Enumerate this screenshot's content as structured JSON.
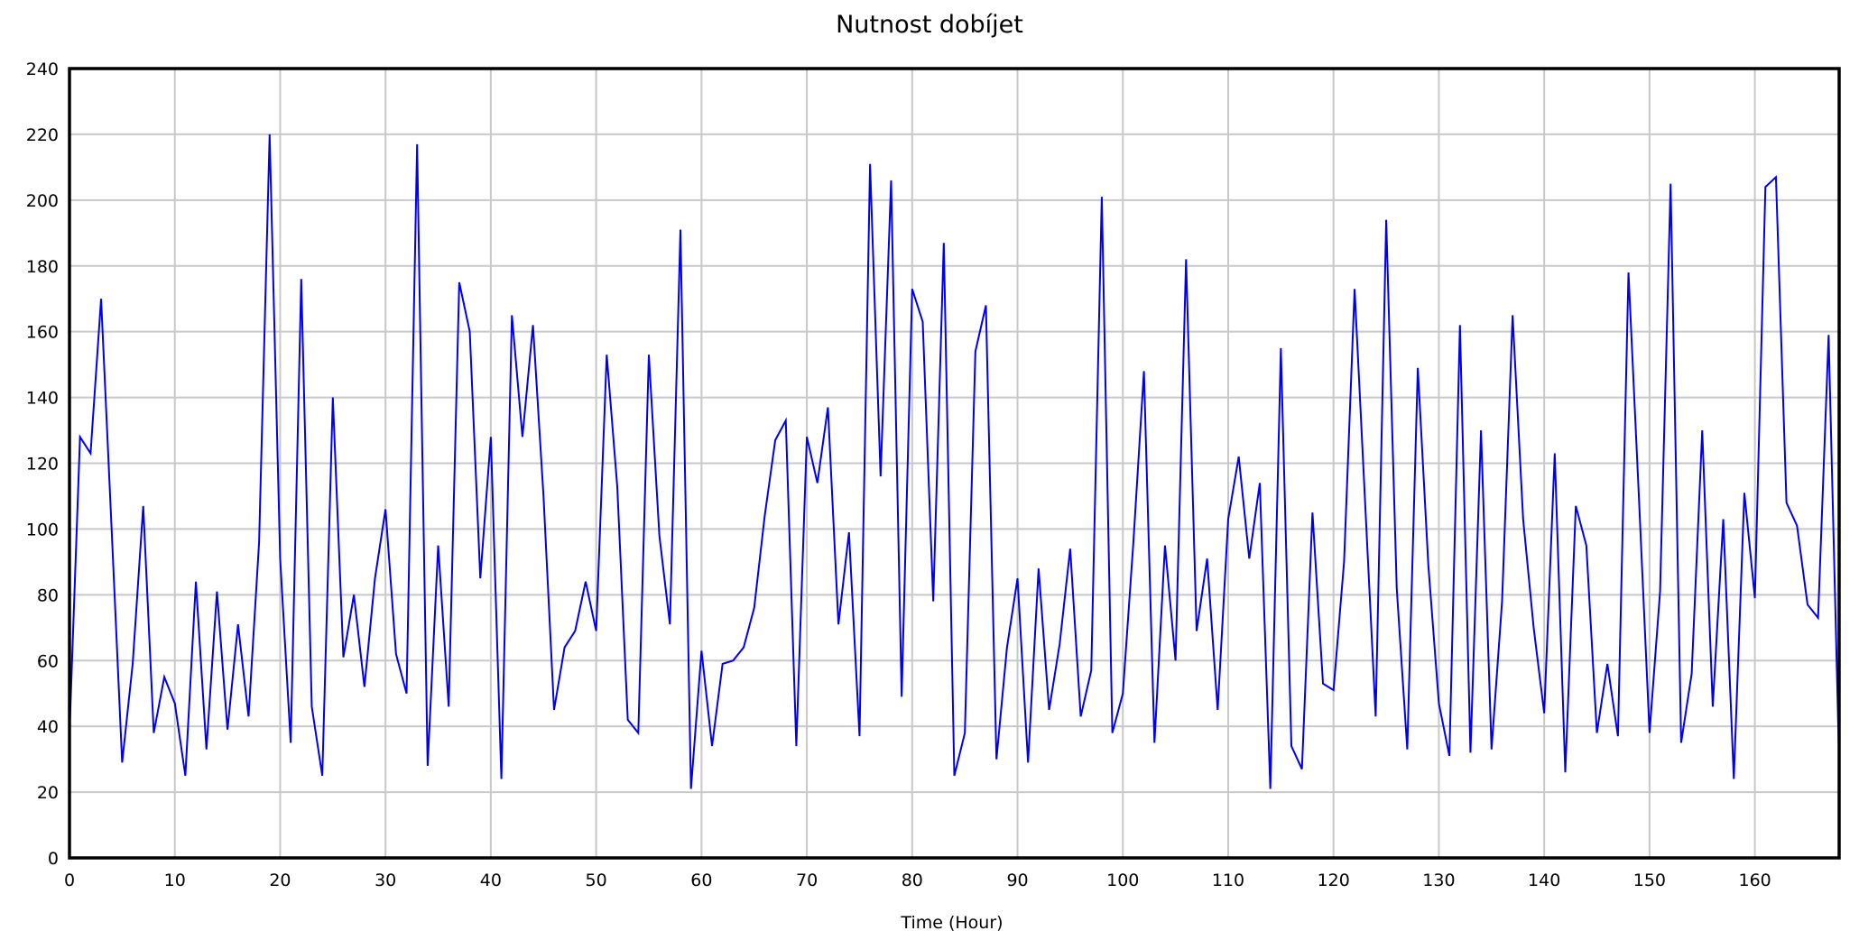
{
  "chart_data": {
    "type": "line",
    "title": "Nutnost dobíjet",
    "xlabel": "Time (Hour)",
    "ylabel": "",
    "xlim": [
      0,
      168
    ],
    "ylim": [
      0,
      240
    ],
    "x_ticks": [
      0,
      10,
      20,
      30,
      40,
      50,
      60,
      70,
      80,
      90,
      100,
      110,
      120,
      130,
      140,
      150,
      160
    ],
    "y_ticks": [
      0,
      20,
      40,
      60,
      80,
      100,
      120,
      140,
      160,
      180,
      200,
      220,
      240
    ],
    "grid": true,
    "legend": "none",
    "series": [
      {
        "color": "#0000ee",
        "x_start": 0,
        "x_step": 1,
        "values": [
          38,
          128,
          123,
          170,
          100,
          29,
          59,
          107,
          38,
          55,
          47,
          25,
          84,
          33,
          81,
          39,
          71,
          43,
          96,
          220,
          91,
          35,
          176,
          46,
          25,
          140,
          61,
          80,
          52,
          85,
          106,
          62,
          50,
          217,
          28,
          95,
          46,
          175,
          160,
          85,
          128,
          24,
          165,
          128,
          162,
          110,
          45,
          64,
          69,
          84,
          69,
          153,
          113,
          42,
          38,
          153,
          98,
          71,
          191,
          21,
          63,
          34,
          59,
          60,
          64,
          76,
          104,
          127,
          133,
          34,
          128,
          114,
          137,
          71,
          99,
          37,
          211,
          116,
          206,
          49,
          173,
          163,
          78,
          187,
          25,
          38,
          154,
          168,
          30,
          64,
          85,
          29,
          88,
          45,
          65,
          94,
          43,
          57,
          201,
          38,
          50,
          96,
          148,
          35,
          95,
          60,
          182,
          69,
          91,
          45,
          103,
          122,
          91,
          114,
          21,
          155,
          34,
          27,
          105,
          53,
          51,
          90,
          173,
          108,
          43,
          194,
          82,
          33,
          149,
          89,
          47,
          31,
          162,
          32,
          130,
          33,
          78,
          165,
          103,
          70,
          44,
          123,
          26,
          107,
          95,
          38,
          59,
          37,
          178,
          109,
          38,
          81,
          205,
          35,
          56,
          130,
          46,
          103,
          24,
          111,
          79,
          204,
          207,
          108,
          101,
          77,
          73,
          159,
          29
        ]
      }
    ]
  }
}
